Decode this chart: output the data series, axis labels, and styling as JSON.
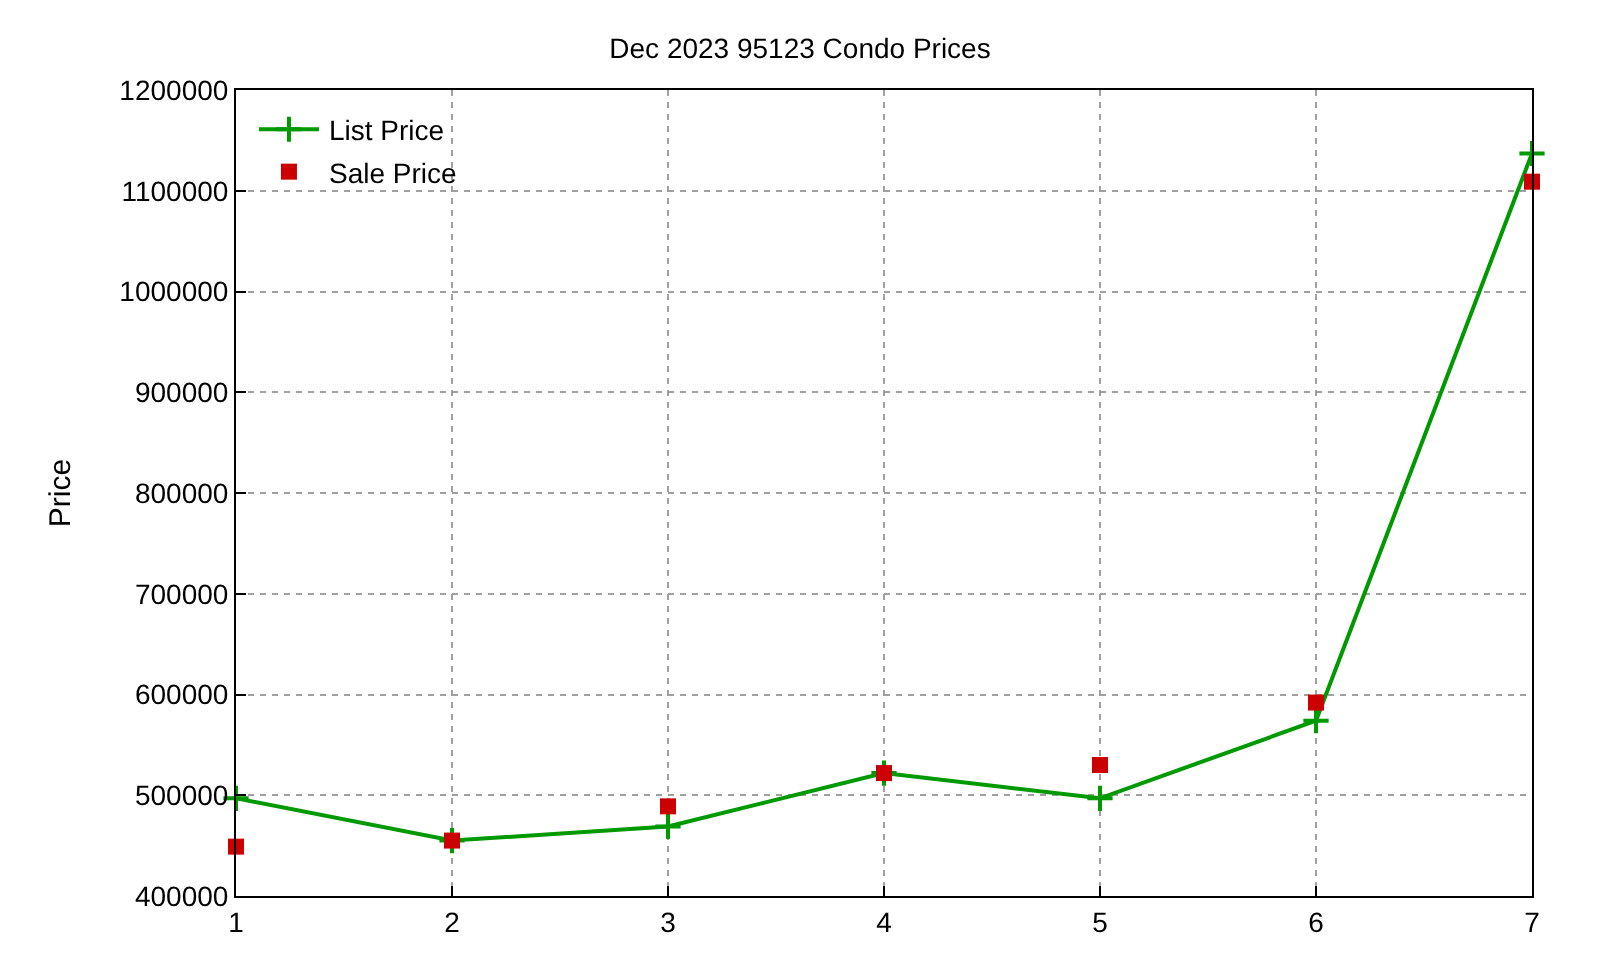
{
  "chart_data": {
    "type": "line",
    "title": "Dec 2023 95123 Condo Prices",
    "ylabel": "Price",
    "x": [
      1,
      2,
      3,
      4,
      5,
      6,
      7
    ],
    "xlim": [
      1,
      7
    ],
    "xticks": [
      1,
      2,
      3,
      4,
      5,
      6,
      7
    ],
    "ylim": [
      400000,
      1200000
    ],
    "yticks": [
      400000,
      500000,
      600000,
      700000,
      800000,
      900000,
      1000000,
      1100000,
      1200000
    ],
    "grid": true,
    "legend": "top left",
    "series": [
      {
        "name": "List Price",
        "marker": "cross",
        "color": "#009900",
        "values": [
          497000,
          455000,
          469000,
          522000,
          497000,
          574000,
          1137000
        ]
      },
      {
        "name": "Sale Price",
        "type": "scatter",
        "marker": "square",
        "color": "#cc0000",
        "values": [
          449000,
          455000,
          489000,
          522000,
          530000,
          592000,
          1109000
        ]
      }
    ]
  }
}
